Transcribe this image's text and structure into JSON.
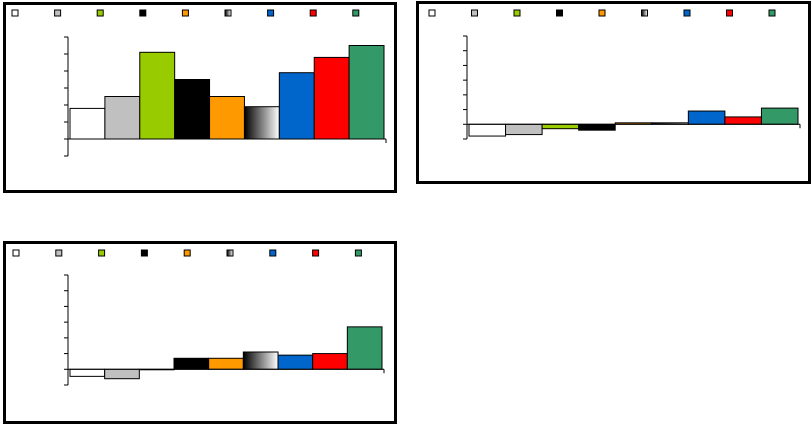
{
  "chart_data": [
    {
      "type": "bar",
      "ylim": [
        -1,
        6
      ],
      "yticks": [
        -1,
        0,
        1,
        2,
        3,
        4,
        5,
        6
      ],
      "series": [
        {
          "color": "#ffffff",
          "values": [
            1.8
          ]
        },
        {
          "color": "#c0c0c0",
          "values": [
            2.5
          ]
        },
        {
          "color": "#99cc00",
          "values": [
            5.1
          ]
        },
        {
          "color": "#000000",
          "values": [
            3.5
          ]
        },
        {
          "color": "#ff9900",
          "values": [
            2.5
          ]
        },
        {
          "color": [
            "#000000",
            "#ffffff"
          ],
          "values": [
            1.9
          ]
        },
        {
          "color": "#0066cc",
          "values": [
            3.9
          ]
        },
        {
          "color": "#ff0000",
          "values": [
            4.8
          ]
        },
        {
          "color": "#339966",
          "values": [
            5.5
          ]
        }
      ]
    },
    {
      "type": "bar",
      "ylim": [
        -1,
        6
      ],
      "yticks": [
        -1,
        0,
        1,
        2,
        3,
        4,
        5,
        6
      ],
      "series": [
        {
          "color": "#ffffff",
          "values": [
            -0.8
          ]
        },
        {
          "color": "#c0c0c0",
          "values": [
            -0.7
          ]
        },
        {
          "color": "#99cc00",
          "values": [
            -0.3
          ]
        },
        {
          "color": "#000000",
          "values": [
            -0.4
          ]
        },
        {
          "color": "#ff9900",
          "values": [
            0.1
          ]
        },
        {
          "color": [
            "#000000",
            "#ffffff"
          ],
          "values": [
            0.1
          ]
        },
        {
          "color": "#0066cc",
          "values": [
            0.9
          ]
        },
        {
          "color": "#ff0000",
          "values": [
            0.5
          ]
        },
        {
          "color": "#339966",
          "values": [
            1.1
          ]
        }
      ]
    },
    {
      "type": "bar",
      "ylim": [
        -1,
        6
      ],
      "yticks": [
        -1,
        0,
        1,
        2,
        3,
        4,
        5,
        6
      ],
      "series": [
        {
          "color": "#ffffff",
          "values": [
            -0.45
          ]
        },
        {
          "color": "#c0c0c0",
          "values": [
            -0.6
          ]
        },
        {
          "color": "#99cc00",
          "values": [
            0
          ]
        },
        {
          "color": "#000000",
          "values": [
            0.7
          ]
        },
        {
          "color": "#ff9900",
          "values": [
            0.7
          ]
        },
        {
          "color": [
            "#000000",
            "#ffffff"
          ],
          "values": [
            1.1
          ]
        },
        {
          "color": "#0066cc",
          "values": [
            0.9
          ]
        },
        {
          "color": "#ff0000",
          "values": [
            1.0
          ]
        },
        {
          "color": "#339966",
          "values": [
            2.7
          ]
        }
      ]
    }
  ]
}
